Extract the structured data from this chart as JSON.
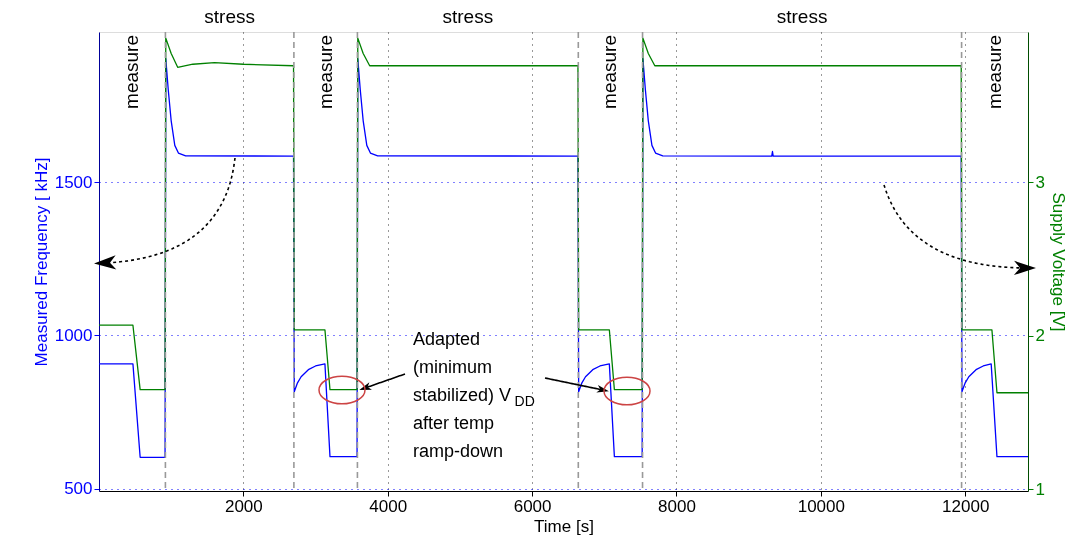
{
  "chart_data": {
    "type": "line",
    "xlabel": "Time [s]",
    "ylabel": "Measured Frequency [ kHz]",
    "y2label": "Supply Voltage [V]",
    "xlim": [
      0,
      12870
    ],
    "xticks": [
      2000,
      4000,
      6000,
      8000,
      10000,
      12000
    ],
    "ylim": [
      492,
      1990
    ],
    "yticks": [
      500,
      1000,
      1500
    ],
    "y2lim": [
      0.99,
      3.98
    ],
    "y2ticks": [
      1,
      2,
      3
    ],
    "grid": true,
    "line_style": "solid",
    "series": [
      {
        "color": "#0000ff",
        "x": [
          0,
          470,
          570,
          915,
          925,
          960,
          1000,
          1050,
          1100,
          1200,
          2695,
          2705,
          2750,
          2800,
          2900,
          3000,
          3130,
          3200,
          3575,
          3585,
          3620,
          3660,
          3710,
          3760,
          3860,
          6635,
          6645,
          6690,
          6740,
          6840,
          6940,
          7070,
          7140,
          7525,
          7535,
          7570,
          7610,
          7660,
          7710,
          7810,
          9320,
          9330,
          9340,
          11945,
          11955,
          12000,
          12050,
          12150,
          12250,
          12360,
          12440,
          12870
        ],
        "values": [
          907,
          907,
          602,
          602,
          1903,
          1800,
          1700,
          1620,
          1595,
          1586,
          1585,
          816,
          845,
          865,
          888,
          900,
          907,
          604,
          604,
          1903,
          1800,
          1700,
          1620,
          1595,
          1586,
          1585,
          816,
          845,
          865,
          888,
          900,
          907,
          604,
          604,
          1903,
          1800,
          1700,
          1620,
          1595,
          1586,
          1585,
          1600,
          1585,
          1585,
          816,
          845,
          865,
          888,
          900,
          907,
          604,
          604
        ]
      },
      {
        "color": "#008000",
        "axis": "y2",
        "x": [
          0,
          470,
          570,
          915,
          925,
          1000,
          1090,
          1300,
          1600,
          2000,
          2695,
          2705,
          3130,
          3200,
          3575,
          3585,
          3660,
          3750,
          4500,
          6635,
          6645,
          7070,
          7140,
          7525,
          7535,
          7610,
          7700,
          9000,
          11945,
          11955,
          12370,
          12440,
          12870
        ],
        "values": [
          2.07,
          2.07,
          1.65,
          1.65,
          3.94,
          3.84,
          3.75,
          3.77,
          3.78,
          3.77,
          3.76,
          2.04,
          2.04,
          1.65,
          1.65,
          3.94,
          3.84,
          3.76,
          3.76,
          3.76,
          2.04,
          2.04,
          1.65,
          1.65,
          3.94,
          3.84,
          3.76,
          3.76,
          3.76,
          2.04,
          2.04,
          1.63,
          1.63
        ]
      }
    ],
    "ref_lines": [
      {
        "axis": "x",
        "value": 920,
        "color": "#999999",
        "line_style": "dashed"
      },
      {
        "axis": "x",
        "value": 2700,
        "color": "#999999",
        "line_style": "dashed"
      },
      {
        "axis": "x",
        "value": 3580,
        "color": "#999999",
        "line_style": "dashed"
      },
      {
        "axis": "x",
        "value": 6640,
        "color": "#999999",
        "line_style": "dashed"
      },
      {
        "axis": "x",
        "value": 7530,
        "color": "#999999",
        "line_style": "dashed"
      },
      {
        "axis": "x",
        "value": 11950,
        "color": "#999999",
        "line_style": "dashed"
      }
    ],
    "annotations": [
      "measure",
      "stress",
      "measure",
      "stress",
      "measure",
      "stress",
      "measure",
      "Adapted\n(minimum\nstabilized) V$_{DD}$\nafter temp\nramp-down"
    ]
  }
}
